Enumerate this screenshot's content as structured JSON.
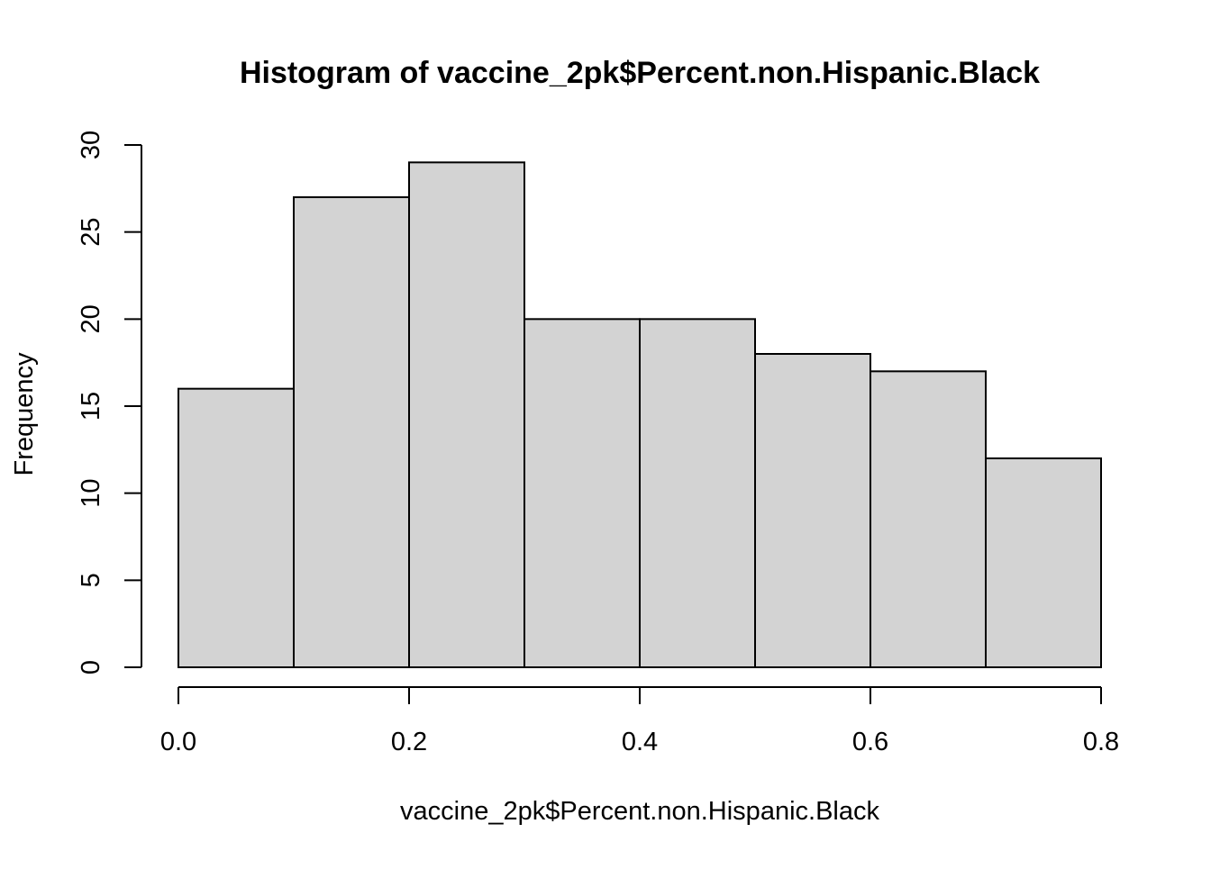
{
  "chart_data": {
    "type": "bar",
    "title": "Histogram of vaccine_2pk$Percent.non.Hispanic.Black",
    "xlabel": "vaccine_2pk$Percent.non.Hispanic.Black",
    "ylabel": "Frequency",
    "bins": [
      {
        "from": 0.0,
        "to": 0.1,
        "count": 16
      },
      {
        "from": 0.1,
        "to": 0.2,
        "count": 27
      },
      {
        "from": 0.2,
        "to": 0.3,
        "count": 29
      },
      {
        "from": 0.3,
        "to": 0.4,
        "count": 20
      },
      {
        "from": 0.4,
        "to": 0.5,
        "count": 20
      },
      {
        "from": 0.5,
        "to": 0.6,
        "count": 18
      },
      {
        "from": 0.6,
        "to": 0.7,
        "count": 17
      },
      {
        "from": 0.7,
        "to": 0.8,
        "count": 12
      }
    ],
    "xlim": [
      0.0,
      0.8
    ],
    "ylim": [
      0,
      30
    ],
    "x_ticks": [
      0.0,
      0.2,
      0.4,
      0.6,
      0.8
    ],
    "x_tick_labels": [
      "0.0",
      "0.2",
      "0.4",
      "0.6",
      "0.8"
    ],
    "y_ticks": [
      0,
      5,
      10,
      15,
      20,
      25,
      30
    ],
    "y_tick_labels": [
      "0",
      "5",
      "10",
      "15",
      "20",
      "25",
      "30"
    ],
    "grid": false,
    "bar_color": "#d3d3d3",
    "edge_color": "#000000"
  }
}
